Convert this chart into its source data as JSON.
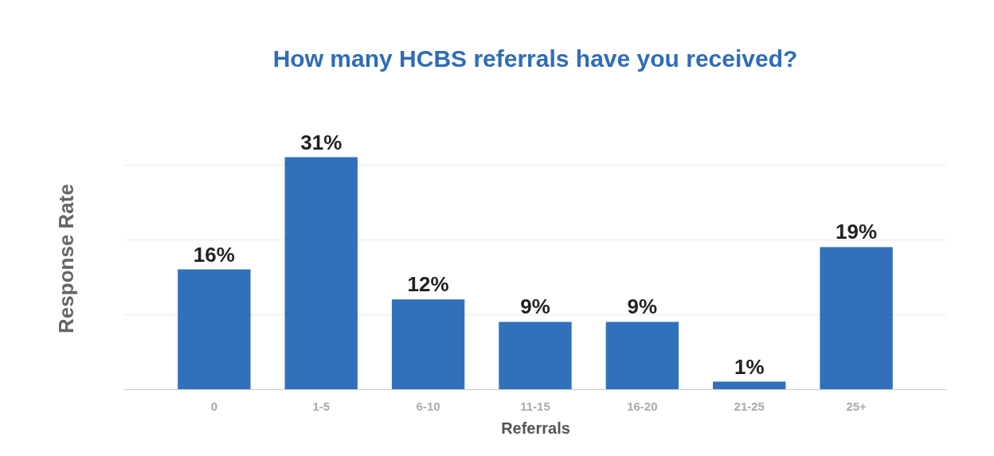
{
  "chart_data": {
    "type": "bar",
    "title": "How many HCBS referrals have you received?",
    "xlabel": "Referrals",
    "ylabel": "Response Rate",
    "categories": [
      "0",
      "1-5",
      "6-10",
      "11-15",
      "16-20",
      "21-25",
      "25+"
    ],
    "values": [
      16,
      31,
      12,
      9,
      9,
      1,
      19
    ],
    "color": "#3171bb",
    "value_labels": [
      "16%",
      "31%",
      "12%",
      "9%",
      "9%",
      "1%",
      "19%"
    ],
    "grid": "y",
    "tick_labels": "x"
  }
}
